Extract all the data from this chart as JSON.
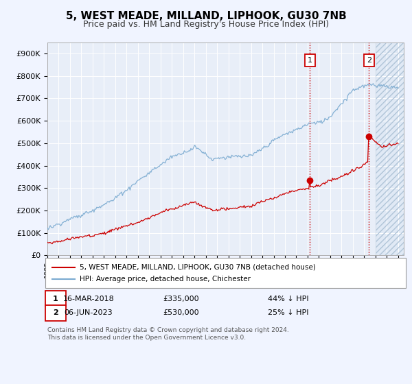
{
  "title": "5, WEST MEADE, MILLAND, LIPHOOK, GU30 7NB",
  "subtitle": "Price paid vs. HM Land Registry's House Price Index (HPI)",
  "title_fontsize": 11,
  "subtitle_fontsize": 9,
  "background_color": "#f0f4ff",
  "plot_bg_color": "#e8eef8",
  "grid_color": "#ffffff",
  "hpi_color": "#7aaad0",
  "price_color": "#cc0000",
  "vline_color": "#cc0000",
  "marker1_x": 2018.21,
  "marker1_y": 335000,
  "marker2_x": 2023.43,
  "marker2_y": 530000,
  "legend_house": "5, WEST MEADE, MILLAND, LIPHOOK, GU30 7NB (detached house)",
  "legend_hpi": "HPI: Average price, detached house, Chichester",
  "table_row1": [
    "1",
    "16-MAR-2018",
    "£335,000",
    "44% ↓ HPI"
  ],
  "table_row2": [
    "2",
    "06-JUN-2023",
    "£530,000",
    "25% ↓ HPI"
  ],
  "footer": "Contains HM Land Registry data © Crown copyright and database right 2024.\nThis data is licensed under the Open Government Licence v3.0.",
  "ylim": [
    0,
    950000
  ],
  "xlim_start": 1995.0,
  "xlim_end": 2026.5,
  "hatch_start": 2024.0,
  "yticks": [
    0,
    100000,
    200000,
    300000,
    400000,
    500000,
    600000,
    700000,
    800000,
    900000
  ],
  "ytick_labels": [
    "£0",
    "£100K",
    "£200K",
    "£300K",
    "£400K",
    "£500K",
    "£600K",
    "£700K",
    "£800K",
    "£900K"
  ],
  "xticks": [
    1995,
    1996,
    1997,
    1998,
    1999,
    2000,
    2001,
    2002,
    2003,
    2004,
    2005,
    2006,
    2007,
    2008,
    2009,
    2010,
    2011,
    2012,
    2013,
    2014,
    2015,
    2016,
    2017,
    2018,
    2019,
    2020,
    2021,
    2022,
    2023,
    2024,
    2025,
    2026
  ]
}
